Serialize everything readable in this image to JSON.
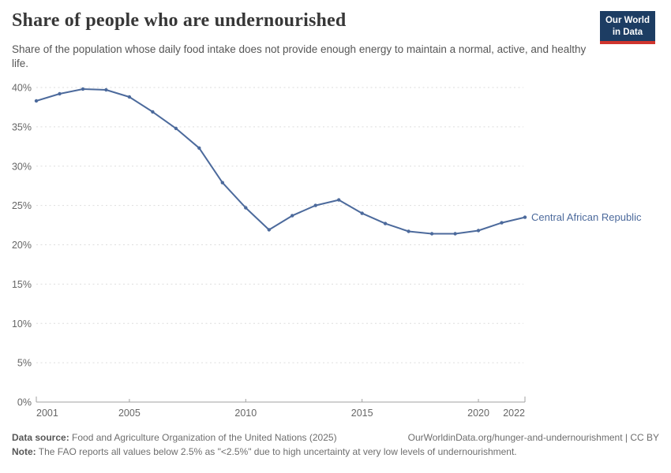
{
  "header": {
    "title": "Share of people who are undernourished",
    "subtitle": "Share of the population whose daily food intake does not provide enough energy to maintain a normal, active, and healthy life."
  },
  "logo": {
    "line1": "Our World",
    "line2": "in Data",
    "bg_color": "#1d3d63",
    "stripe_color": "#cf352e"
  },
  "chart_data": {
    "type": "line",
    "title": "Share of people who are undernourished",
    "xlabel": "",
    "ylabel": "",
    "unit": "%",
    "xlim": [
      2001,
      2022
    ],
    "ylim": [
      0,
      40
    ],
    "yticks": [
      0,
      5,
      10,
      15,
      20,
      25,
      30,
      35,
      40
    ],
    "xticks": [
      2001,
      2005,
      2010,
      2015,
      2020,
      2022
    ],
    "grid": "horizontal-dashed",
    "legend": "line-end-label",
    "series": [
      {
        "name": "Central African Republic",
        "color": "#4C6A9C",
        "x": [
          2001,
          2002,
          2003,
          2004,
          2005,
          2006,
          2007,
          2008,
          2009,
          2010,
          2011,
          2012,
          2013,
          2014,
          2015,
          2016,
          2017,
          2018,
          2019,
          2020,
          2021,
          2022
        ],
        "values": [
          38.3,
          39.2,
          39.8,
          39.7,
          38.8,
          36.9,
          34.8,
          32.3,
          27.9,
          24.7,
          21.9,
          23.7,
          25.0,
          25.7,
          24.0,
          22.7,
          21.7,
          21.4,
          21.4,
          21.8,
          22.8,
          23.5
        ]
      }
    ]
  },
  "footer": {
    "datasource_label": "Data source:",
    "datasource_text": "Food and Agriculture Organization of the United Nations (2025)",
    "link_text": "OurWorldinData.org/hunger-and-undernourishment | CC BY",
    "note_label": "Note:",
    "note_text": "The FAO reports all values below 2.5% as \"<2.5%\" due to high uncertainty at very low levels of undernourishment."
  }
}
